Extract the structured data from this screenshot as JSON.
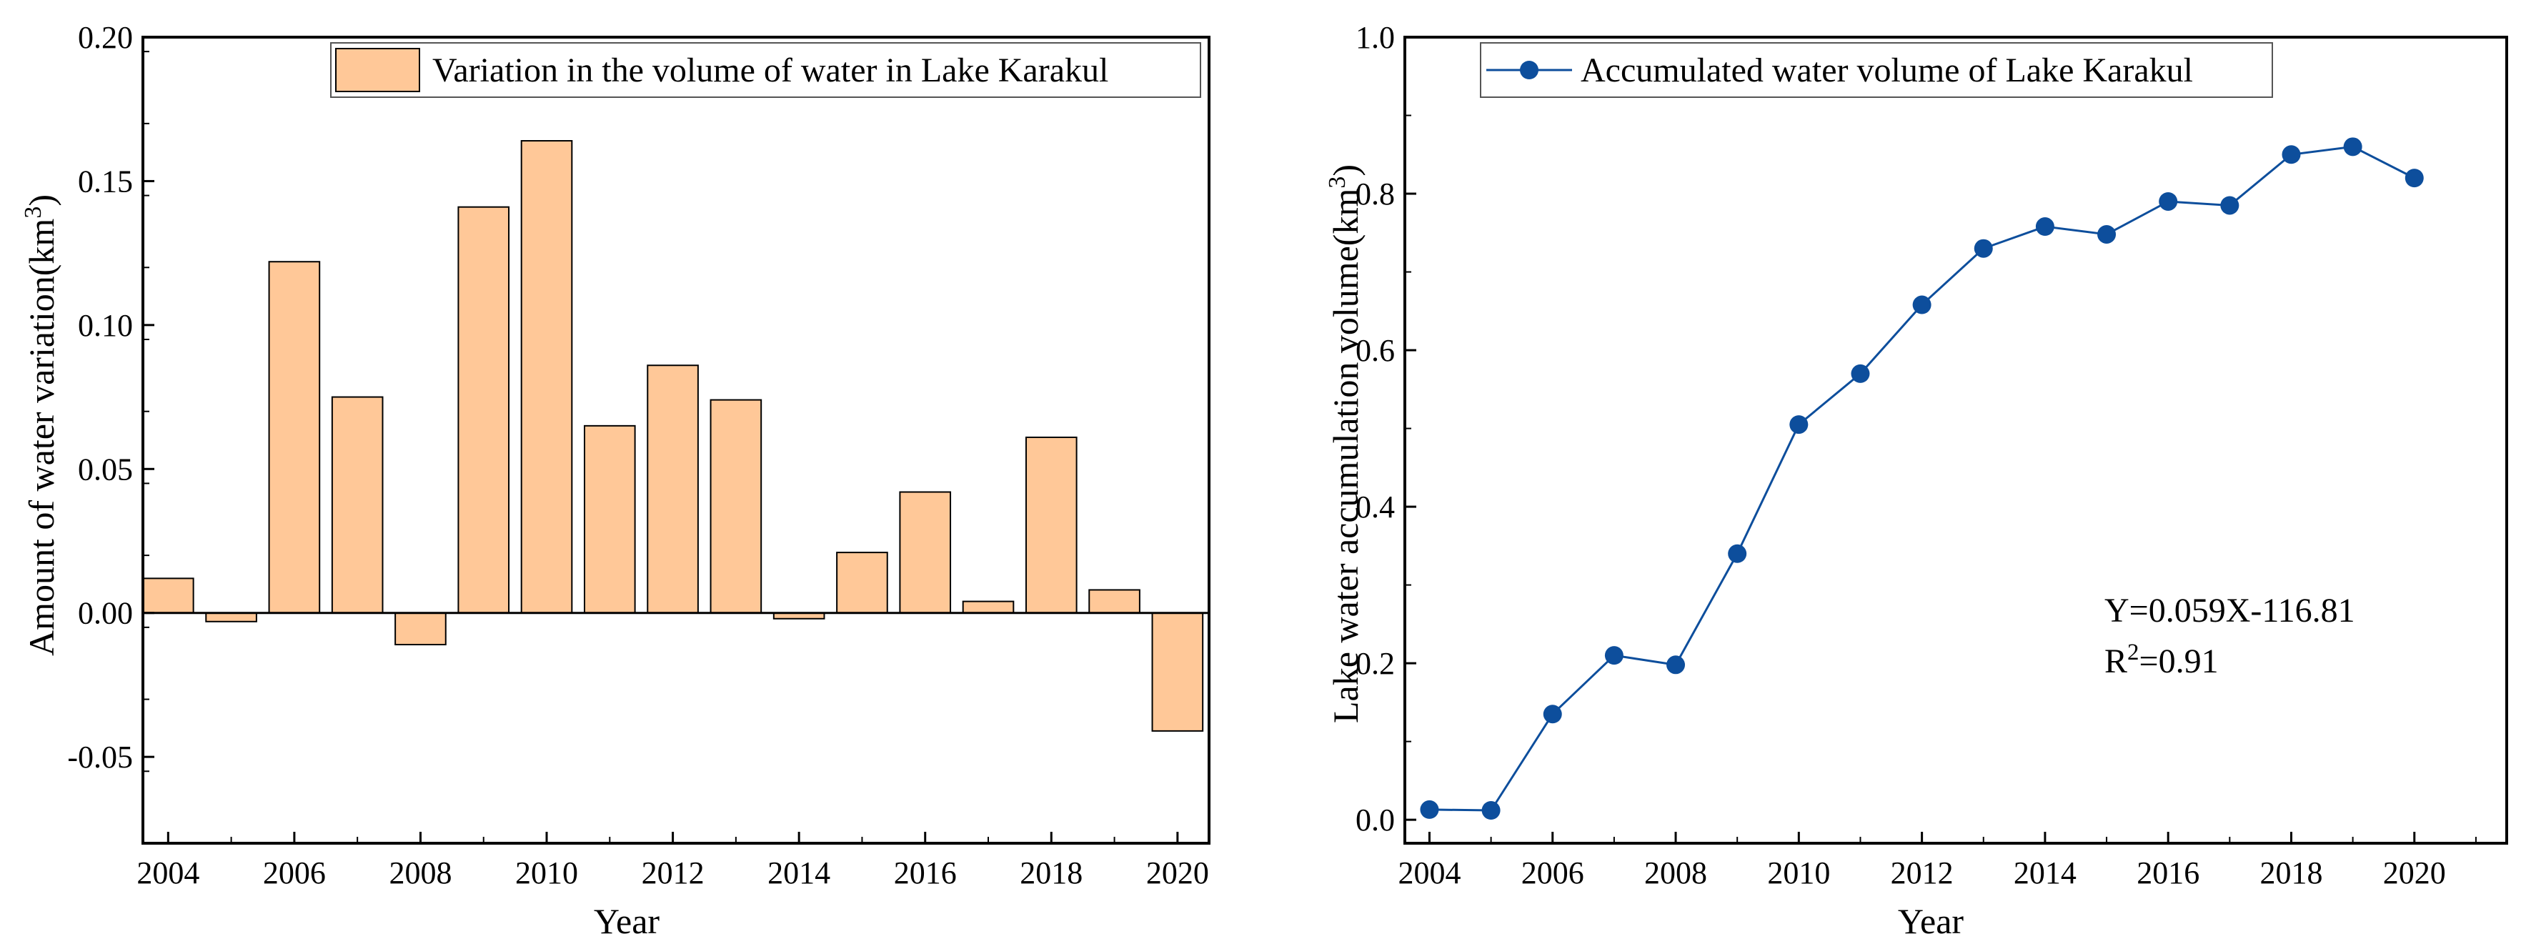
{
  "chart_data": [
    {
      "type": "bar",
      "categories": [
        "2004",
        "2005",
        "2006",
        "2007",
        "2008",
        "2009",
        "2010",
        "2011",
        "2012",
        "2013",
        "2014",
        "2015",
        "2016",
        "2017",
        "2018",
        "2019",
        "2020"
      ],
      "values": [
        0.012,
        -0.003,
        0.122,
        0.075,
        -0.011,
        0.141,
        0.164,
        0.065,
        0.086,
        0.074,
        -0.002,
        0.021,
        0.042,
        0.004,
        0.061,
        0.008,
        -0.041
      ],
      "xlabel": "Year",
      "ylabel_main": "Amount of water variation(km",
      "ylabel_sup": "3",
      "ylabel_close": ")",
      "xlim": [
        2003.6,
        2020.5
      ],
      "ylim": [
        -0.08,
        0.2
      ],
      "yticks": [
        -0.05,
        0.0,
        0.05,
        0.1,
        0.15,
        0.2
      ],
      "ytick_labels": [
        "-0.05",
        "0.00",
        "0.05",
        "0.10",
        "0.15",
        "0.20"
      ],
      "xticks": [
        2004,
        2006,
        2008,
        2010,
        2012,
        2014,
        2016,
        2018,
        2020
      ],
      "xtick_labels": [
        "2004",
        "2006",
        "2008",
        "2010",
        "2012",
        "2014",
        "2016",
        "2018",
        "2020"
      ],
      "legend_label": "Variation in the volume of water in Lake Karakul",
      "legend_position": "top-right",
      "bar_color": "#FFC898",
      "edge_color": "#000000",
      "grid": false
    },
    {
      "type": "line",
      "x": [
        2004,
        2005,
        2006,
        2007,
        2008,
        2009,
        2010,
        2011,
        2012,
        2013,
        2014,
        2015,
        2016,
        2017,
        2018,
        2019,
        2020
      ],
      "y": [
        0.013,
        0.012,
        0.135,
        0.21,
        0.198,
        0.34,
        0.505,
        0.57,
        0.658,
        0.73,
        0.758,
        0.748,
        0.79,
        0.785,
        0.85,
        0.86,
        0.82
      ],
      "series_name": "Accumulated water volume of Lake Karakul",
      "trend": {
        "slope": 0.059,
        "intercept": -116.81,
        "x_range": [
          2004,
          2020
        ],
        "color": "#F26B6B",
        "style": "dashed"
      },
      "annotation_line1": "Y=0.059X-116.81",
      "annotation_line2_main": "R",
      "annotation_line2_sup": "2",
      "annotation_line2_rest": "=0.91",
      "xlabel": "Year",
      "ylabel_main": "Lake water accumulation volume(km",
      "ylabel_sup": "3",
      "ylabel_close": ")",
      "xlim": [
        2003.6,
        2021.5
      ],
      "ylim": [
        -0.03,
        1.0
      ],
      "yticks": [
        0.0,
        0.2,
        0.4,
        0.6,
        0.8,
        1.0
      ],
      "ytick_labels": [
        "0.0",
        "0.2",
        "0.4",
        "0.6",
        "0.8",
        "1.0"
      ],
      "xticks": [
        2004,
        2006,
        2008,
        2010,
        2012,
        2014,
        2016,
        2018,
        2020
      ],
      "xtick_labels": [
        "2004",
        "2006",
        "2008",
        "2010",
        "2012",
        "2014",
        "2016",
        "2018",
        "2020"
      ],
      "legend_position": "top-left",
      "line_color": "#0D4E9C",
      "grid": false
    }
  ]
}
